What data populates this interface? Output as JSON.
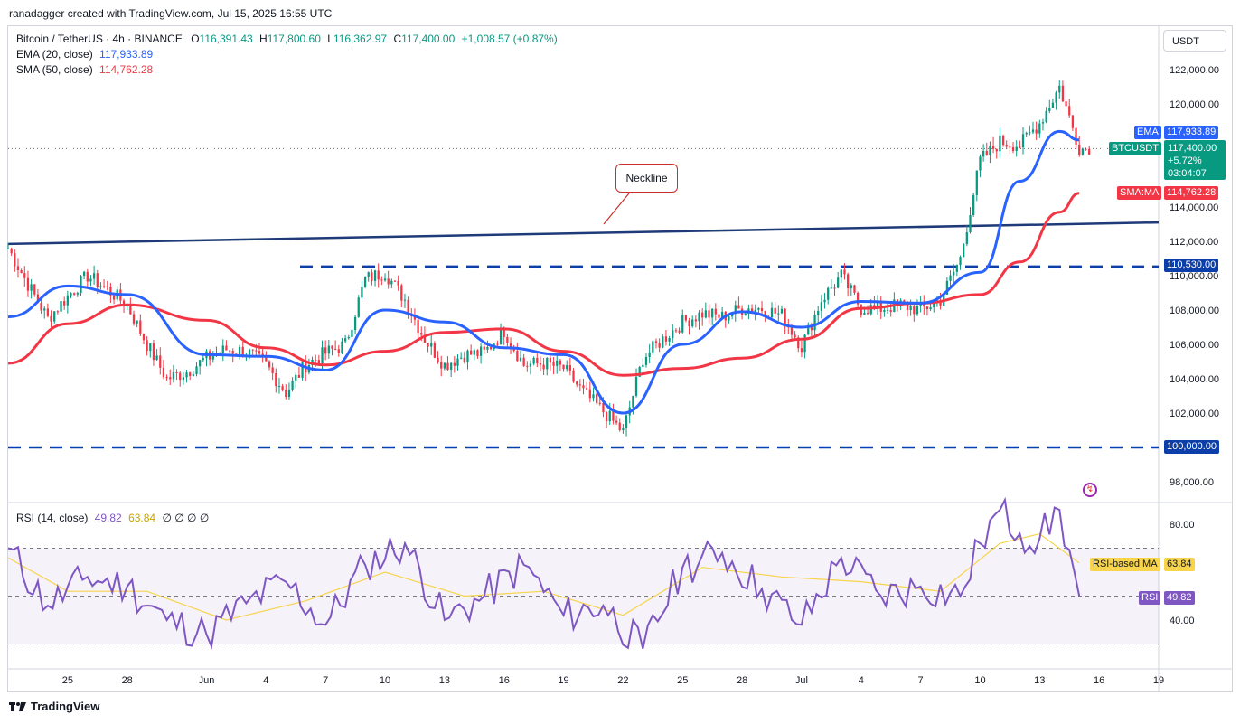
{
  "header": {
    "attribution": "ranadagger created with TradingView.com, Jul 15, 2025 16:55 UTC"
  },
  "legend": {
    "symbol": "Bitcoin / TetherUS · 4h · BINANCE",
    "ohlc": {
      "o_label": "O",
      "o": "116,391.43",
      "h_label": "H",
      "h": "117,800.60",
      "l_label": "L",
      "l": "116,362.97",
      "c_label": "C",
      "c": "117,400.00",
      "change": "+1,008.57 (+0.87%)"
    },
    "ema_label": "EMA (20, close)",
    "ema_value": "117,933.89",
    "sma_label": "SMA (50, close)",
    "sma_value": "114,762.28",
    "rsi_label": "RSI (14, close)",
    "rsi_value": "49.82",
    "rsi_ma_value": "63.84",
    "rsi_extra": "∅ ∅ ∅ ∅"
  },
  "price_axis": {
    "unit": "USDT",
    "ticks": [
      "122,000.00",
      "120,000.00",
      "114,000.00",
      "112,000.00",
      "110,000.00",
      "108,000.00",
      "106,000.00",
      "104,000.00",
      "102,000.00",
      "98,000.00"
    ]
  },
  "price_chips": {
    "ema_tag": "EMA",
    "ema_value": "117,933.89",
    "symbol_tag": "BTCUSDT",
    "last_price": "117,400.00",
    "change_pct": "+5.72%",
    "countdown": "03:04:07",
    "sma_tag": "SMA:MA",
    "sma_value": "114,762.28",
    "level_110530": "110,530.00",
    "level_100000": "100,000.00"
  },
  "rsi_axis": {
    "ticks": [
      "80.00",
      "40.00"
    ],
    "rsi_ma_tag": "RSI-based MA",
    "rsi_ma_value": "63.84",
    "rsi_tag": "RSI",
    "rsi_value": "49.82"
  },
  "time_axis": {
    "labels": [
      "25",
      "28",
      "Jun",
      "4",
      "7",
      "10",
      "13",
      "16",
      "19",
      "22",
      "25",
      "28",
      "Jul",
      "4",
      "7",
      "10",
      "13",
      "16",
      "19"
    ]
  },
  "annotation": {
    "neckline": "Neckline"
  },
  "footer": {
    "brand": "TradingView"
  },
  "colors": {
    "up": "#089981",
    "down": "#f23645",
    "ema": "#2962ff",
    "sma": "#f23645",
    "rsi": "#7e57c2",
    "rsi_ma": "#f7d44c",
    "level": "#0b3ea8",
    "neckline": "#1e3a78"
  },
  "chart_data": {
    "type": "candlestick",
    "title": "Bitcoin / TetherUS · 4h · BINANCE",
    "ylim": [
      97000,
      124000
    ],
    "x_range": [
      "2025-05-22",
      "2025-07-19"
    ],
    "horizontal_levels": [
      110530,
      100000
    ],
    "neckline": {
      "label": "Neckline",
      "from": [
        "2025-05-22",
        111850
      ],
      "to": [
        "2025-07-19",
        113100
      ]
    },
    "close_path": {
      "dates": [
        "2025-05-22",
        "2025-05-23",
        "2025-05-24",
        "2025-05-25",
        "2025-05-26",
        "2025-05-27",
        "2025-05-28",
        "2025-05-29",
        "2025-05-30",
        "2025-05-31",
        "2025-06-01",
        "2025-06-02",
        "2025-06-03",
        "2025-06-04",
        "2025-06-05",
        "2025-06-06",
        "2025-06-07",
        "2025-06-08",
        "2025-06-09",
        "2025-06-10",
        "2025-06-11",
        "2025-06-12",
        "2025-06-13",
        "2025-06-14",
        "2025-06-15",
        "2025-06-16",
        "2025-06-17",
        "2025-06-18",
        "2025-06-19",
        "2025-06-20",
        "2025-06-21",
        "2025-06-22",
        "2025-06-23",
        "2025-06-24",
        "2025-06-25",
        "2025-06-26",
        "2025-06-27",
        "2025-06-28",
        "2025-06-29",
        "2025-06-30",
        "2025-07-01",
        "2025-07-02",
        "2025-07-03",
        "2025-07-04",
        "2025-07-05",
        "2025-07-06",
        "2025-07-07",
        "2025-07-08",
        "2025-07-09",
        "2025-07-10",
        "2025-07-11",
        "2025-07-12",
        "2025-07-13",
        "2025-07-14",
        "2025-07-15"
      ],
      "values": [
        111600,
        109500,
        107500,
        108800,
        110000,
        109200,
        108300,
        106000,
        104000,
        104400,
        105200,
        105700,
        105600,
        104800,
        103200,
        104800,
        105500,
        106000,
        109800,
        110200,
        108600,
        106300,
        104800,
        105400,
        105500,
        106800,
        104800,
        104900,
        104600,
        103200,
        102100,
        100900,
        105200,
        106300,
        107300,
        107800,
        107600,
        108100,
        108100,
        107700,
        105900,
        108600,
        110000,
        108100,
        108100,
        108300,
        108000,
        108600,
        111000,
        116700,
        117800,
        117600,
        118900,
        121000,
        117400
      ]
    },
    "ema_20": {
      "dates": [
        "2025-05-22",
        "2025-05-25",
        "2025-05-28",
        "2025-06-01",
        "2025-06-04",
        "2025-06-07",
        "2025-06-10",
        "2025-06-13",
        "2025-06-16",
        "2025-06-19",
        "2025-06-22",
        "2025-06-25",
        "2025-06-28",
        "2025-07-01",
        "2025-07-04",
        "2025-07-07",
        "2025-07-10",
        "2025-07-12",
        "2025-07-14",
        "2025-07-15"
      ],
      "values": [
        107600,
        109400,
        108900,
        105400,
        105300,
        104500,
        108000,
        107300,
        105800,
        105400,
        102000,
        106000,
        107900,
        107000,
        108500,
        108400,
        110200,
        115500,
        118400,
        117900
      ]
    },
    "sma_50": {
      "dates": [
        "2025-05-22",
        "2025-05-25",
        "2025-05-28",
        "2025-06-01",
        "2025-06-04",
        "2025-06-07",
        "2025-06-10",
        "2025-06-13",
        "2025-06-16",
        "2025-06-19",
        "2025-06-22",
        "2025-06-25",
        "2025-06-28",
        "2025-07-01",
        "2025-07-04",
        "2025-07-07",
        "2025-07-10",
        "2025-07-12",
        "2025-07-14",
        "2025-07-15"
      ],
      "values": [
        104900,
        107200,
        108300,
        107400,
        105800,
        104800,
        105600,
        106700,
        106900,
        105600,
        104200,
        104600,
        105200,
        106300,
        108100,
        108400,
        108900,
        110800,
        113700,
        114800
      ]
    },
    "rsi_14": {
      "ylim": [
        20,
        90
      ],
      "overbought": 70,
      "oversold": 30,
      "mid": 50,
      "dates": [
        "2025-05-22",
        "2025-05-24",
        "2025-05-26",
        "2025-05-28",
        "2025-05-30",
        "2025-06-01",
        "2025-06-03",
        "2025-06-05",
        "2025-06-07",
        "2025-06-09",
        "2025-06-11",
        "2025-06-13",
        "2025-06-15",
        "2025-06-17",
        "2025-06-19",
        "2025-06-21",
        "2025-06-23",
        "2025-06-25",
        "2025-06-27",
        "2025-06-29",
        "2025-07-01",
        "2025-07-03",
        "2025-07-05",
        "2025-07-07",
        "2025-07-09",
        "2025-07-10",
        "2025-07-11",
        "2025-07-12",
        "2025-07-13",
        "2025-07-14",
        "2025-07-15"
      ],
      "values": [
        70,
        46,
        58,
        54,
        40,
        34,
        47,
        56,
        38,
        63,
        72,
        40,
        50,
        63,
        42,
        46,
        28,
        62,
        68,
        53,
        38,
        66,
        50,
        54,
        50,
        72,
        86,
        76,
        74,
        86,
        50
      ]
    },
    "rsi_ma": {
      "dates": [
        "2025-05-22",
        "2025-05-25",
        "2025-05-29",
        "2025-06-02",
        "2025-06-06",
        "2025-06-10",
        "2025-06-14",
        "2025-06-18",
        "2025-06-22",
        "2025-06-26",
        "2025-06-30",
        "2025-07-04",
        "2025-07-08",
        "2025-07-11",
        "2025-07-13",
        "2025-07-15"
      ],
      "values": [
        66,
        52,
        52,
        40,
        48,
        60,
        50,
        52,
        42,
        62,
        58,
        56,
        52,
        72,
        76,
        63.84
      ]
    }
  }
}
